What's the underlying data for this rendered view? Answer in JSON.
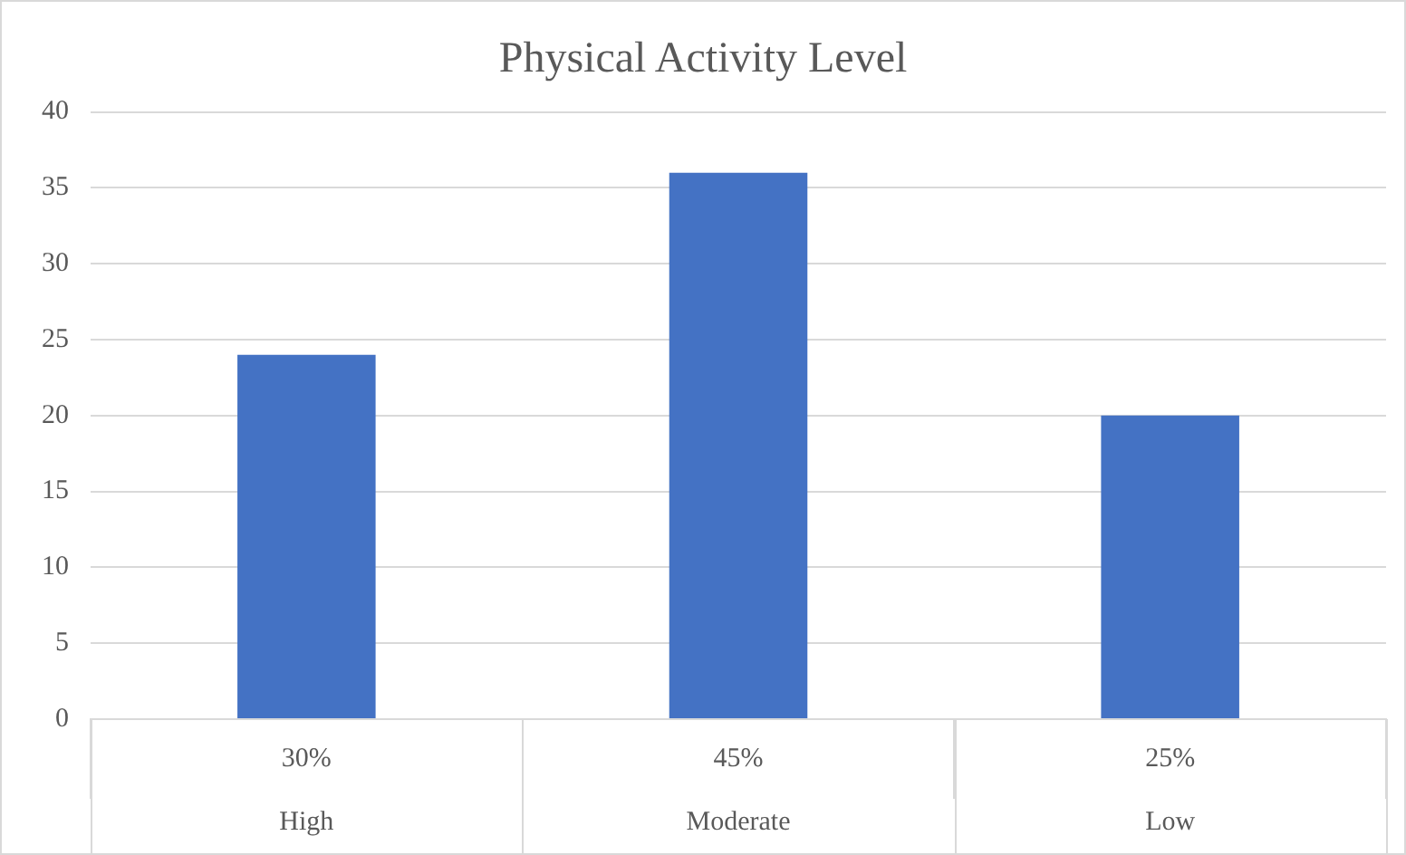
{
  "chart_data": {
    "type": "bar",
    "title": "Physical Activity Level",
    "categories": [
      "High",
      "Moderate",
      "Low"
    ],
    "values": [
      24,
      36,
      20
    ],
    "color": "#4472c4",
    "ylim": [
      0,
      40
    ],
    "yticks": [
      0,
      5,
      10,
      15,
      20,
      25,
      30,
      35,
      40
    ],
    "grid": "y",
    "legend": false,
    "annotations": [
      "30%",
      "45%",
      "25%"
    ]
  }
}
